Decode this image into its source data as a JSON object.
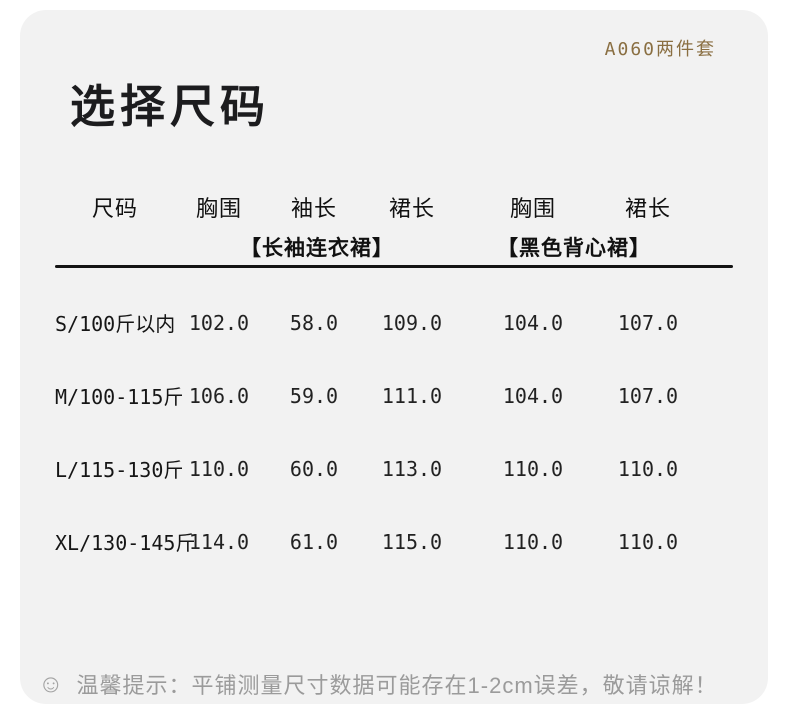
{
  "badge": {
    "label": "A060两件套"
  },
  "title": "选择尺码",
  "table": {
    "columns": [
      "尺码",
      "胸围",
      "袖长",
      "裙长",
      "胸围",
      "裙长"
    ],
    "groups": [
      {
        "label": "【长袖连衣裙】"
      },
      {
        "label": "【黑色背心裙】"
      }
    ],
    "rows": [
      {
        "size": "S/100斤以内",
        "values": [
          "102.0",
          "58.0",
          "109.0",
          "104.0",
          "107.0"
        ]
      },
      {
        "size": "M/100-115斤",
        "values": [
          "106.0",
          "59.0",
          "111.0",
          "104.0",
          "107.0"
        ]
      },
      {
        "size": "L/115-130斤",
        "values": [
          "110.0",
          "60.0",
          "113.0",
          "110.0",
          "110.0"
        ]
      },
      {
        "size": "XL/130-145斤",
        "values": [
          "114.0",
          "61.0",
          "115.0",
          "110.0",
          "110.0"
        ]
      }
    ]
  },
  "tip": {
    "icon": "☺",
    "text": "温馨提示：平铺测量尺寸数据可能存在1-2cm误差，敬请谅解！"
  },
  "colors": {
    "card_bg": "#f2f2f2",
    "accent_gold": "#8a6f42",
    "text_dark": "#1c1c1e",
    "divider": "#141414",
    "tip_gray": "#9b9b9b"
  }
}
